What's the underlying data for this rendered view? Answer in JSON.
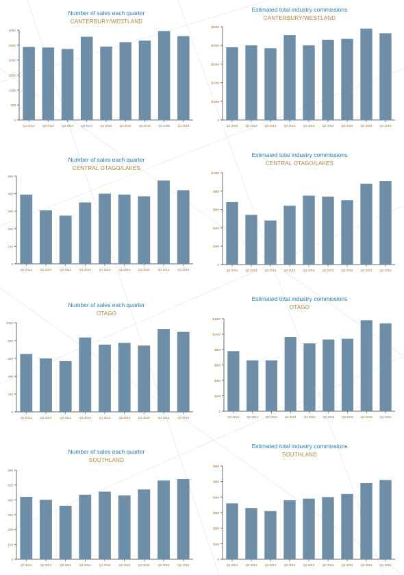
{
  "colors": {
    "bar": "#6e8da6",
    "title": "#1f7fb8",
    "subtitle": "#b0823c",
    "axis": "#5a6b78",
    "tick_label": "#9a6a2e"
  },
  "chart_data": [
    {
      "type": "bar",
      "title": "Number of sales each quarter",
      "subtitle": "CANTERBURY/WESTLAND",
      "categories": [
        "Q1 2014",
        "Q2 2014",
        "Q3 2014",
        "Q4 2014",
        "Q1 2015",
        "Q2 2015",
        "Q3 2015",
        "Q4 2015",
        "Q1 2016"
      ],
      "values": [
        2440,
        2420,
        2370,
        2780,
        2450,
        2600,
        2650,
        2970,
        2800
      ],
      "ylim": [
        0,
        3000
      ],
      "yticks": [
        0,
        500,
        1000,
        1500,
        2000,
        2500,
        3000
      ],
      "ytick_labels": [
        "0",
        "500",
        "1000",
        "1500",
        "2000",
        "2500",
        "3000"
      ]
    },
    {
      "type": "bar",
      "title": "Estimated total industry commissions",
      "subtitle": "CANTERBURY/WESTLAND",
      "categories": [
        "Q1 2014",
        "Q2 2014",
        "Q3 2014",
        "Q4 2014",
        "Q1 2015",
        "Q2 2015",
        "Q3 2015",
        "Q4 2015",
        "Q1 2016"
      ],
      "values": [
        39,
        40,
        38.5,
        45.5,
        40,
        43,
        43.5,
        49,
        46.5
      ],
      "ylim": [
        0,
        50
      ],
      "yticks": [
        0,
        10,
        20,
        30,
        40,
        50
      ],
      "ytick_labels": [
        "0",
        "$10M",
        "$20M",
        "$30M",
        "$40M",
        "$50M"
      ]
    },
    {
      "type": "bar",
      "title": "Number of sales each quarter",
      "subtitle": "CENTRAL OTAGO/LAKES",
      "categories": [
        "Q1 2014",
        "Q2 2014",
        "Q3 2014",
        "Q4 2014",
        "Q1 2015",
        "Q2 2015",
        "Q3 2015",
        "Q4 2015",
        "Q1 2016"
      ],
      "values": [
        395,
        305,
        275,
        350,
        400,
        395,
        385,
        475,
        420
      ],
      "ylim": [
        0,
        500
      ],
      "yticks": [
        0,
        100,
        200,
        300,
        400,
        500
      ],
      "ytick_labels": [
        "0",
        "100",
        "200",
        "300",
        "400",
        "500"
      ]
    },
    {
      "type": "bar",
      "title": "Estimated total industry commissions",
      "subtitle": "CENTRAL OTAGO/LAKES",
      "categories": [
        "Q1 2014",
        "Q2 2014",
        "Q3 2014",
        "Q4 2014",
        "Q1 2015",
        "Q2 2015",
        "Q3 2015",
        "Q4 2015",
        "Q1 2016"
      ],
      "values": [
        6.8,
        5.4,
        4.8,
        6.4,
        7.5,
        7.4,
        7.0,
        8.8,
        9.1
      ],
      "ylim": [
        0,
        10
      ],
      "yticks": [
        0,
        2,
        4,
        6,
        8,
        10
      ],
      "ytick_labels": [
        "0",
        "$2M",
        "$4M",
        "$6M",
        "$8M",
        "$10M"
      ]
    },
    {
      "type": "bar",
      "title": "Number of sales each quarter",
      "subtitle": "OTAGO",
      "categories": [
        "Q1 2014",
        "Q2 2014",
        "Q3 2014",
        "Q4 2014",
        "Q1 2015",
        "Q2 2015",
        "Q3 2015",
        "Q4 2015",
        "Q1 2016"
      ],
      "values": [
        650,
        600,
        570,
        835,
        755,
        775,
        745,
        930,
        900
      ],
      "ylim": [
        0,
        1000
      ],
      "yticks": [
        0,
        200,
        400,
        600,
        800,
        1000
      ],
      "ytick_labels": [
        "0",
        "200",
        "400",
        "600",
        "800",
        "1000"
      ]
    },
    {
      "type": "bar",
      "title": "Estimated total industry commissions",
      "subtitle": "OTAGO",
      "categories": [
        "Q1 2014",
        "Q2 2014",
        "Q3 2014",
        "Q4 2014",
        "Q1 2015",
        "Q2 2015",
        "Q3 2015",
        "Q4 2015",
        "Q1 2016"
      ],
      "values": [
        7.8,
        6.6,
        6.6,
        9.6,
        8.8,
        9.3,
        9.4,
        11.8,
        11.4
      ],
      "ylim": [
        0,
        12
      ],
      "yticks": [
        0,
        2,
        4,
        6,
        8,
        10,
        12
      ],
      "ytick_labels": [
        "0",
        "$2M",
        "$4M",
        "$6M",
        "$8M",
        "$10M",
        "$12M"
      ]
    },
    {
      "type": "bar",
      "title": "Number of sales each quarter",
      "subtitle": "SOUTHLAND",
      "categories": [
        "Q1 2014",
        "Q2 2014",
        "Q3 2014",
        "Q4 2014",
        "Q1 2015",
        "Q2 2015",
        "Q3 2015",
        "Q4 2015",
        "Q1 2016"
      ],
      "values": [
        420,
        400,
        360,
        435,
        455,
        430,
        470,
        530,
        540
      ],
      "ylim": [
        0,
        600
      ],
      "yticks": [
        0,
        100,
        200,
        300,
        400,
        500,
        600
      ],
      "ytick_labels": [
        "0",
        "100",
        "200",
        "300",
        "400",
        "500",
        "600"
      ]
    },
    {
      "type": "bar",
      "title": "Estimated total industry commissions",
      "subtitle": "SOUTHLAND",
      "categories": [
        "Q1 2014",
        "Q2 2014",
        "Q3 2014",
        "Q4 2014",
        "Q1 2015",
        "Q2 2015",
        "Q3 2015",
        "Q4 2015",
        "Q1 2016"
      ],
      "values": [
        3.6,
        3.3,
        3.1,
        3.8,
        3.9,
        4.0,
        4.2,
        4.9,
        5.1
      ],
      "ylim": [
        0,
        6
      ],
      "yticks": [
        0,
        1,
        2,
        3,
        4,
        5,
        6
      ],
      "ytick_labels": [
        "0",
        "$1M",
        "$2M",
        "$3M",
        "$4M",
        "$5M",
        "$6M"
      ]
    }
  ]
}
